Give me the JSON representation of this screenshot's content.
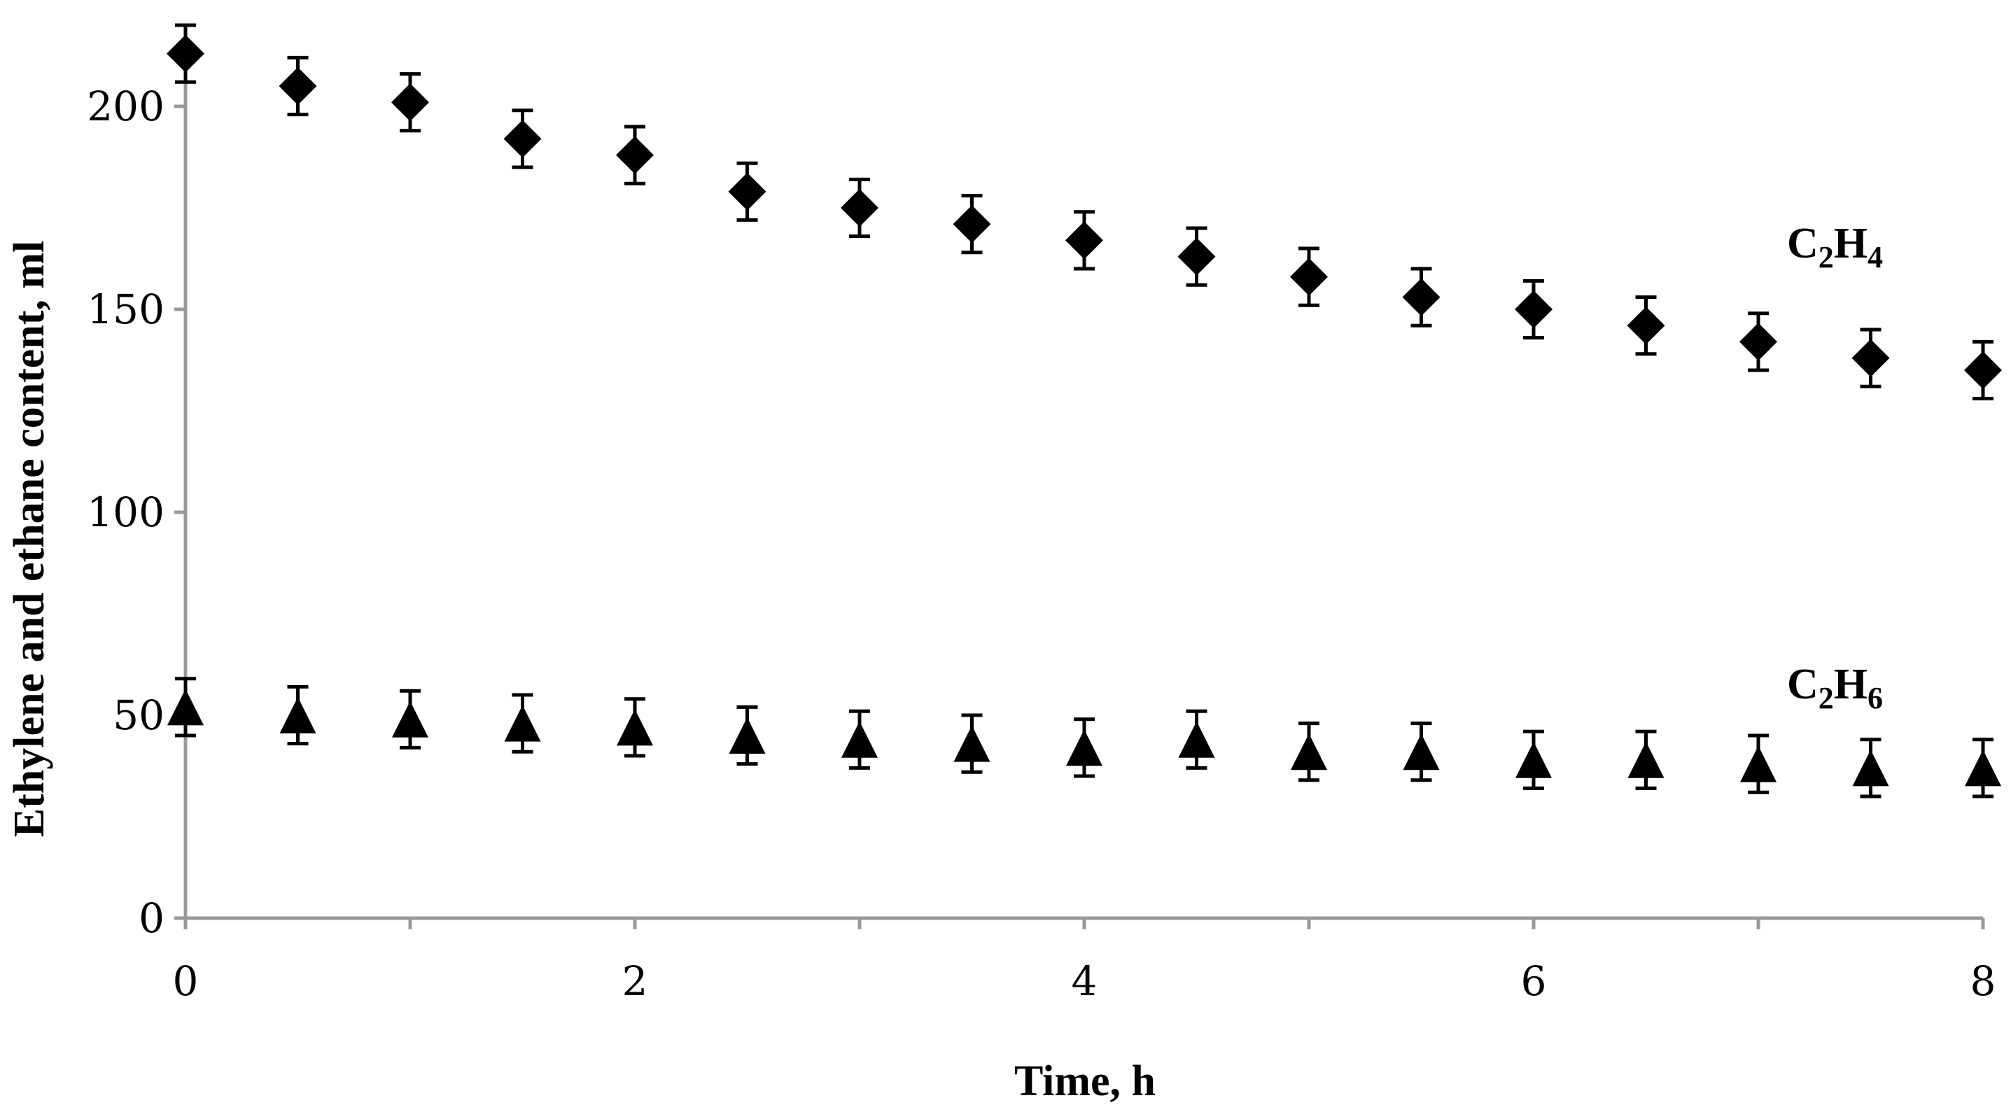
{
  "chart_data": {
    "type": "scatter",
    "xlabel": "Time, h",
    "ylabel": "Ethylene and ethane content, ml",
    "xlim": [
      0,
      8
    ],
    "ylim": [
      0,
      220
    ],
    "x_ticks": [
      "0",
      "2",
      "4",
      "6",
      "8"
    ],
    "y_ticks": [
      "0",
      "50",
      "100",
      "150",
      "200"
    ],
    "x_tick_values": [
      0,
      2,
      4,
      6,
      8
    ],
    "y_tick_values": [
      0,
      50,
      100,
      150,
      200
    ],
    "grid": false,
    "legend": "none",
    "colors": {
      "axis": "#999999",
      "marker": "#000000"
    },
    "x": [
      0,
      0.5,
      1,
      1.5,
      2,
      2.5,
      3,
      3.5,
      4,
      4.5,
      5,
      5.5,
      6,
      6.5,
      7,
      7.5,
      8
    ],
    "series": [
      {
        "label_main": "C",
        "label_sub1": "2",
        "label_mid": "H",
        "label_sub2": "4",
        "marker": "diamond",
        "values": [
          213,
          205,
          201,
          192,
          188,
          179,
          175,
          171,
          167,
          163,
          158,
          153,
          150,
          146,
          142,
          138,
          135
        ],
        "error": [
          7,
          7,
          7,
          7,
          7,
          7,
          7,
          7,
          7,
          7,
          7,
          7,
          7,
          7,
          7,
          7,
          7
        ]
      },
      {
        "label_main": "C",
        "label_sub1": "2",
        "label_mid": "H",
        "label_sub2": "6",
        "marker": "triangle",
        "values": [
          52,
          50,
          49,
          48,
          47,
          45,
          44,
          43,
          42,
          44,
          41,
          41,
          39,
          39,
          38,
          37,
          37
        ],
        "error": [
          7,
          7,
          7,
          7,
          7,
          7,
          7,
          7,
          7,
          7,
          7,
          7,
          7,
          7,
          7,
          7,
          7
        ]
      }
    ]
  }
}
